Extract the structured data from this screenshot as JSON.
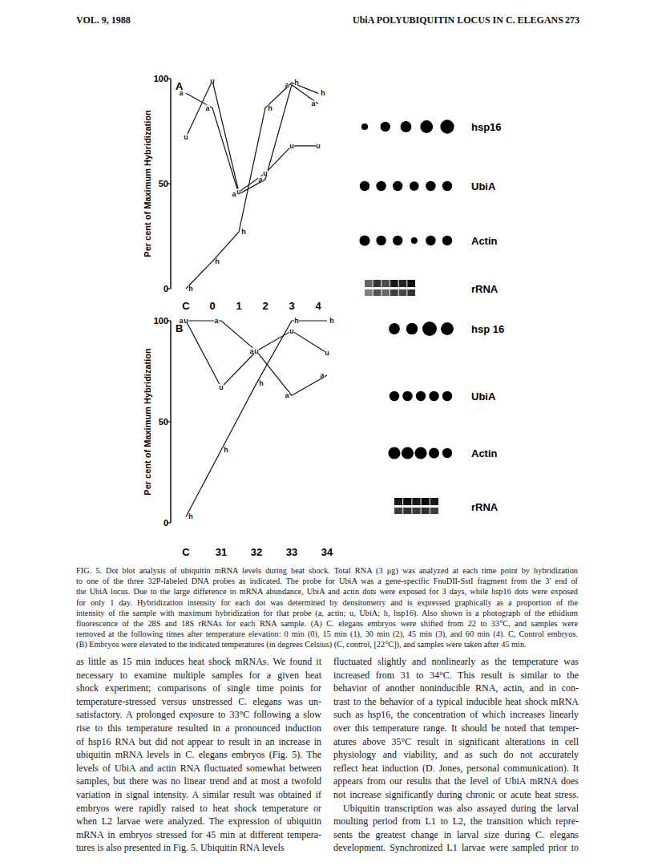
{
  "header": {
    "left": "VOL. 9, 1988",
    "center": "UbiA POLYUBIQUITIN LOCUS IN C. ELEGANS",
    "right": "273"
  },
  "chart_data": [
    {
      "type": "line",
      "title": "A",
      "y_label": "Per cent of Maximum Hybridization",
      "categories": [
        "C",
        "0",
        "1",
        "2",
        "3",
        "4"
      ],
      "ylim": [
        0,
        100
      ],
      "yticks": [
        0,
        50,
        100
      ],
      "grid": false,
      "series": [
        {
          "marker": "a",
          "color": "#111111",
          "values": [
            93,
            86,
            45,
            52,
            97,
            88
          ]
        },
        {
          "marker": "u",
          "color": "#111111",
          "values": [
            72,
            99,
            46,
            55,
            68,
            68
          ]
        },
        {
          "marker": "h",
          "color": "#111111",
          "values": [
            0,
            13,
            27,
            86,
            98,
            93
          ]
        }
      ]
    },
    {
      "type": "line",
      "title": "B",
      "y_label": "Per cent of Maximum Hybridization",
      "categories": [
        "C",
        "31",
        "32",
        "33",
        "34"
      ],
      "ylim": [
        0,
        100
      ],
      "yticks": [
        0,
        50,
        100
      ],
      "grid": false,
      "series": [
        {
          "marker": "a",
          "color": "#111111",
          "values": [
            100,
            100,
            85,
            63,
            73
          ]
        },
        {
          "marker": "u",
          "color": "#111111",
          "values": [
            100,
            67,
            85,
            95,
            84
          ]
        },
        {
          "marker": "h",
          "color": "#111111",
          "values": [
            3,
            36,
            69,
            100,
            100
          ]
        }
      ]
    }
  ],
  "blots": [
    {
      "rows": [
        {
          "label": "hsp16",
          "type": "dots",
          "intensity": [
            0.3,
            0.6,
            0.7,
            0.85,
            0.95
          ]
        },
        {
          "label": "UbiA",
          "type": "dots",
          "intensity": [
            0.6,
            0.6,
            0.6,
            0.55,
            0.6,
            0.6
          ]
        },
        {
          "label": "Actin",
          "type": "dots",
          "intensity": [
            0.65,
            0.6,
            0.6,
            0.3,
            0.6,
            0.6
          ]
        },
        {
          "label": "rRNA",
          "type": "band",
          "intensity": [
            0.6,
            0.8,
            0.7,
            0.9,
            0.85,
            0.95
          ]
        }
      ]
    },
    {
      "rows": [
        {
          "label": "hsp 16",
          "type": "dots",
          "intensity": [
            0.7,
            0.75,
            1.0,
            0.85
          ]
        },
        {
          "label": "UbiA",
          "type": "dots",
          "intensity": [
            0.6,
            0.6,
            0.6,
            0.6,
            0.6
          ]
        },
        {
          "label": "Actin",
          "type": "dots",
          "intensity": [
            0.8,
            0.8,
            0.8,
            0.65,
            0.6
          ]
        },
        {
          "label": "rRNA",
          "type": "band",
          "intensity": [
            0.9,
            0.95,
            0.9,
            0.95,
            0.9
          ]
        }
      ]
    }
  ],
  "caption": [
    "FIG. 5. Dot blot analysis of ubiquitin mRNA levels during heat shock. Total RNA (3 μg) was analyzed at each time point by hybridization",
    "to one of the three 32P-labeled DNA probes as indicated. The probe for UbiA was a gene-specific FnuDII-SstI fragment from the 3′ end of",
    "the UbiA locus. Due to the large difference in mRNA abundance, UbiA and actin dots were exposed for 3 days, while hsp16 dots were exposed",
    "for only 1 day. Hybridization intensity for each dot was determined by densitometry and is expressed graphically as a proportion of the",
    "intensity of the sample with maximum hybridization for that probe (a, actin; u, UbiA; h, hsp16). Also shown is a photograph of the ethidium",
    "fluorescence of the 28S and 18S rRNAs for each RNA sample. (A) C. elegans embryos were shifted from 22 to 33°C, and samples were",
    "removed at the following times after temperature elevation: 0 min (0), 15 min (1), 30 min (2), 45 min (3), and 60 min (4). C, Control embryos.",
    "(B) Embryos were elevated to the indicated temperatures (in degrees Celsius) (C, control, [22°C]), and samples were taken after 45 min."
  ],
  "body": [
    [
      "as little as 15 min induces heat shock mRNAs. We found it",
      "necessary to examine multiple samples for a given heat",
      "shock experiment; comparisons of single time points for",
      "temperature-stressed versus unstressed C. elegans was un-",
      "satisfactory. A prolonged exposure to 33°C following a slow",
      "rise to this temperature resulted in a pronounced induction",
      "of hsp16 RNA but did not appear to result in an increase in",
      "ubiquitin mRNA levels in C. elegans embryos (Fig. 5). The",
      "levels of UbiA and actin RNA fluctuated somewhat between",
      "samples, but there was no linear trend and at most a twofold",
      "variation in signal intensity. A similar result was obtained if",
      "embryos were rapidly raised to heat shock temperature or",
      "when L2 larvae were analyzed. The expression of ubiquitin",
      "mRNA in embryos stressed for 45 min at different tempera-",
      "tures is also presented in Fig. 5. Ubiquitin RNA levels"
    ],
    [
      "fluctuated slightly and nonlinearly as the temperature was",
      "increased from 31 to 34°C. This result is similar to the",
      "behavior of another noninducible RNA, actin, and in con-",
      "trast to the behavior of a typical inducible heat shock mRNA",
      "such as hsp16, the concentration of which increases linearly",
      "over this temperature range. It should be noted that temper-",
      "atures above 35°C result in significant alterations in cell",
      "physiology and viability, and as such do not accurately",
      "reflect heat induction (D. Jones, personal communication). It",
      "appears from our results that the level of UbiA mRNA does",
      "not increase significantly during chronic or acute heat stress.",
      "Ubiquitin transcription was also assayed during the larval",
      "moulting period from L1 to L2, the transition which repre-",
      "sents the greatest change in larval size during C. elegans",
      "development. Synchronized L1 larvae were sampled prior to"
    ]
  ]
}
